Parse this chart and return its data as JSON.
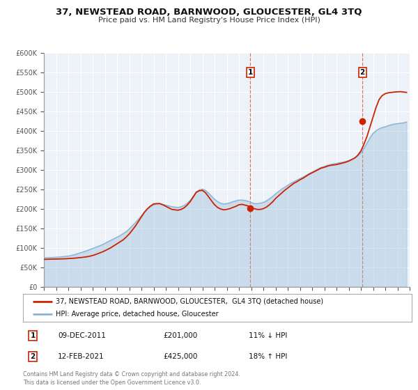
{
  "title": "37, NEWSTEAD ROAD, BARNWOOD, GLOUCESTER, GL4 3TQ",
  "subtitle": "Price paid vs. HM Land Registry's House Price Index (HPI)",
  "legend_line1": "37, NEWSTEAD ROAD, BARNWOOD, GLOUCESTER,  GL4 3TQ (detached house)",
  "legend_line2": "HPI: Average price, detached house, Gloucester",
  "sale1_label": "1",
  "sale1_date": "09-DEC-2011",
  "sale1_price": "£201,000",
  "sale1_hpi": "11% ↓ HPI",
  "sale1_year": 2011.93,
  "sale1_value": 201000,
  "sale2_label": "2",
  "sale2_date": "12-FEB-2021",
  "sale2_price": "£425,000",
  "sale2_hpi": "18% ↑ HPI",
  "sale2_year": 2021.12,
  "sale2_value": 425000,
  "footer": "Contains HM Land Registry data © Crown copyright and database right 2024.\nThis data is licensed under the Open Government Licence v3.0.",
  "hpi_color": "#8ab4d4",
  "price_color": "#cc2200",
  "background_color": "#edf2f9",
  "ylim": [
    0,
    600000
  ],
  "xlim_start": 1995,
  "xlim_end": 2025,
  "yticks": [
    0,
    50000,
    100000,
    150000,
    200000,
    250000,
    300000,
    350000,
    400000,
    450000,
    500000,
    550000,
    600000
  ],
  "ytick_labels": [
    "£0",
    "£50K",
    "£100K",
    "£150K",
    "£200K",
    "£250K",
    "£300K",
    "£350K",
    "£400K",
    "£450K",
    "£500K",
    "£550K",
    "£600K"
  ],
  "hpi_years": [
    1995.0,
    1995.25,
    1995.5,
    1995.75,
    1996.0,
    1996.25,
    1996.5,
    1996.75,
    1997.0,
    1997.25,
    1997.5,
    1997.75,
    1998.0,
    1998.25,
    1998.5,
    1998.75,
    1999.0,
    1999.25,
    1999.5,
    1999.75,
    2000.0,
    2000.25,
    2000.5,
    2000.75,
    2001.0,
    2001.25,
    2001.5,
    2001.75,
    2002.0,
    2002.25,
    2002.5,
    2002.75,
    2003.0,
    2003.25,
    2003.5,
    2003.75,
    2004.0,
    2004.25,
    2004.5,
    2004.75,
    2005.0,
    2005.25,
    2005.5,
    2005.75,
    2006.0,
    2006.25,
    2006.5,
    2006.75,
    2007.0,
    2007.25,
    2007.5,
    2007.75,
    2008.0,
    2008.25,
    2008.5,
    2008.75,
    2009.0,
    2009.25,
    2009.5,
    2009.75,
    2010.0,
    2010.25,
    2010.5,
    2010.75,
    2011.0,
    2011.25,
    2011.5,
    2011.75,
    2012.0,
    2012.25,
    2012.5,
    2012.75,
    2013.0,
    2013.25,
    2013.5,
    2013.75,
    2014.0,
    2014.25,
    2014.5,
    2014.75,
    2015.0,
    2015.25,
    2015.5,
    2015.75,
    2016.0,
    2016.25,
    2016.5,
    2016.75,
    2017.0,
    2017.25,
    2017.5,
    2017.75,
    2018.0,
    2018.25,
    2018.5,
    2018.75,
    2019.0,
    2019.25,
    2019.5,
    2019.75,
    2020.0,
    2020.25,
    2020.5,
    2020.75,
    2021.0,
    2021.25,
    2021.5,
    2021.75,
    2022.0,
    2022.25,
    2022.5,
    2022.75,
    2023.0,
    2023.25,
    2023.5,
    2023.75,
    2024.0,
    2024.25,
    2024.5,
    2024.75
  ],
  "hpi_values": [
    74000,
    74200,
    74500,
    75000,
    75500,
    76000,
    76800,
    77500,
    78500,
    80000,
    82000,
    84500,
    87000,
    89500,
    92000,
    95000,
    98000,
    101000,
    104000,
    107000,
    111000,
    115000,
    119000,
    123000,
    127000,
    131000,
    136000,
    141000,
    148000,
    156000,
    164000,
    173000,
    182000,
    191000,
    199000,
    205000,
    210000,
    212000,
    213000,
    211000,
    209000,
    207000,
    205000,
    204000,
    203000,
    205000,
    208000,
    214000,
    221000,
    232000,
    243000,
    248000,
    250000,
    247000,
    240000,
    232000,
    224000,
    218000,
    214000,
    212000,
    213000,
    215000,
    218000,
    220000,
    222000,
    222000,
    221000,
    219000,
    216000,
    213000,
    213000,
    214000,
    216000,
    220000,
    225000,
    231000,
    238000,
    244000,
    250000,
    255000,
    260000,
    265000,
    269000,
    273000,
    277000,
    281000,
    285000,
    290000,
    294000,
    298000,
    302000,
    306000,
    308000,
    311000,
    313000,
    315000,
    316000,
    318000,
    319000,
    321000,
    323000,
    326000,
    330000,
    336000,
    343000,
    355000,
    368000,
    382000,
    393000,
    400000,
    405000,
    408000,
    410000,
    413000,
    415000,
    417000,
    418000,
    419000,
    420000,
    422000
  ],
  "price_years": [
    1995.0,
    1995.25,
    1995.5,
    1995.75,
    1996.0,
    1996.25,
    1996.5,
    1996.75,
    1997.0,
    1997.25,
    1997.5,
    1997.75,
    1998.0,
    1998.25,
    1998.5,
    1998.75,
    1999.0,
    1999.25,
    1999.5,
    1999.75,
    2000.0,
    2000.25,
    2000.5,
    2000.75,
    2001.0,
    2001.25,
    2001.5,
    2001.75,
    2002.0,
    2002.25,
    2002.5,
    2002.75,
    2003.0,
    2003.25,
    2003.5,
    2003.75,
    2004.0,
    2004.25,
    2004.5,
    2004.75,
    2005.0,
    2005.25,
    2005.5,
    2005.75,
    2006.0,
    2006.25,
    2006.5,
    2006.75,
    2007.0,
    2007.25,
    2007.5,
    2007.75,
    2008.0,
    2008.25,
    2008.5,
    2008.75,
    2009.0,
    2009.25,
    2009.5,
    2009.75,
    2010.0,
    2010.25,
    2010.5,
    2010.75,
    2011.0,
    2011.25,
    2011.5,
    2011.75,
    2012.0,
    2012.25,
    2012.5,
    2012.75,
    2013.0,
    2013.25,
    2013.5,
    2013.75,
    2014.0,
    2014.25,
    2014.5,
    2014.75,
    2015.0,
    2015.25,
    2015.5,
    2015.75,
    2016.0,
    2016.25,
    2016.5,
    2016.75,
    2017.0,
    2017.25,
    2017.5,
    2017.75,
    2018.0,
    2018.25,
    2018.5,
    2018.75,
    2019.0,
    2019.25,
    2019.5,
    2019.75,
    2020.0,
    2020.25,
    2020.5,
    2020.75,
    2021.0,
    2021.25,
    2021.5,
    2021.75,
    2022.0,
    2022.25,
    2022.5,
    2022.75,
    2023.0,
    2023.25,
    2023.5,
    2023.75,
    2024.0,
    2024.25,
    2024.5,
    2024.75
  ],
  "price_values": [
    70000,
    70200,
    70400,
    70600,
    70800,
    71000,
    71200,
    71500,
    72000,
    72500,
    73000,
    73800,
    74500,
    75500,
    76500,
    78000,
    80000,
    82500,
    85500,
    88500,
    92000,
    96000,
    100000,
    105000,
    110000,
    115000,
    120000,
    127000,
    135000,
    145000,
    155000,
    167000,
    179000,
    191000,
    200000,
    207000,
    212000,
    213000,
    213000,
    210000,
    206000,
    202000,
    198000,
    197000,
    196000,
    198000,
    202000,
    209000,
    218000,
    230000,
    242000,
    246000,
    247000,
    241000,
    231000,
    220000,
    210000,
    203000,
    199000,
    197000,
    198000,
    200000,
    203000,
    206000,
    210000,
    211000,
    209000,
    207000,
    203000,
    200000,
    198000,
    198000,
    200000,
    204000,
    210000,
    217000,
    226000,
    233000,
    240000,
    247000,
    253000,
    259000,
    265000,
    269000,
    274000,
    278000,
    283000,
    288000,
    292000,
    296000,
    300000,
    304000,
    306000,
    309000,
    311000,
    312000,
    313000,
    315000,
    317000,
    319000,
    322000,
    326000,
    330000,
    337000,
    348000,
    365000,
    385000,
    410000,
    435000,
    460000,
    480000,
    490000,
    495000,
    497000,
    498000,
    499000,
    499500,
    500000,
    499000,
    498000
  ]
}
